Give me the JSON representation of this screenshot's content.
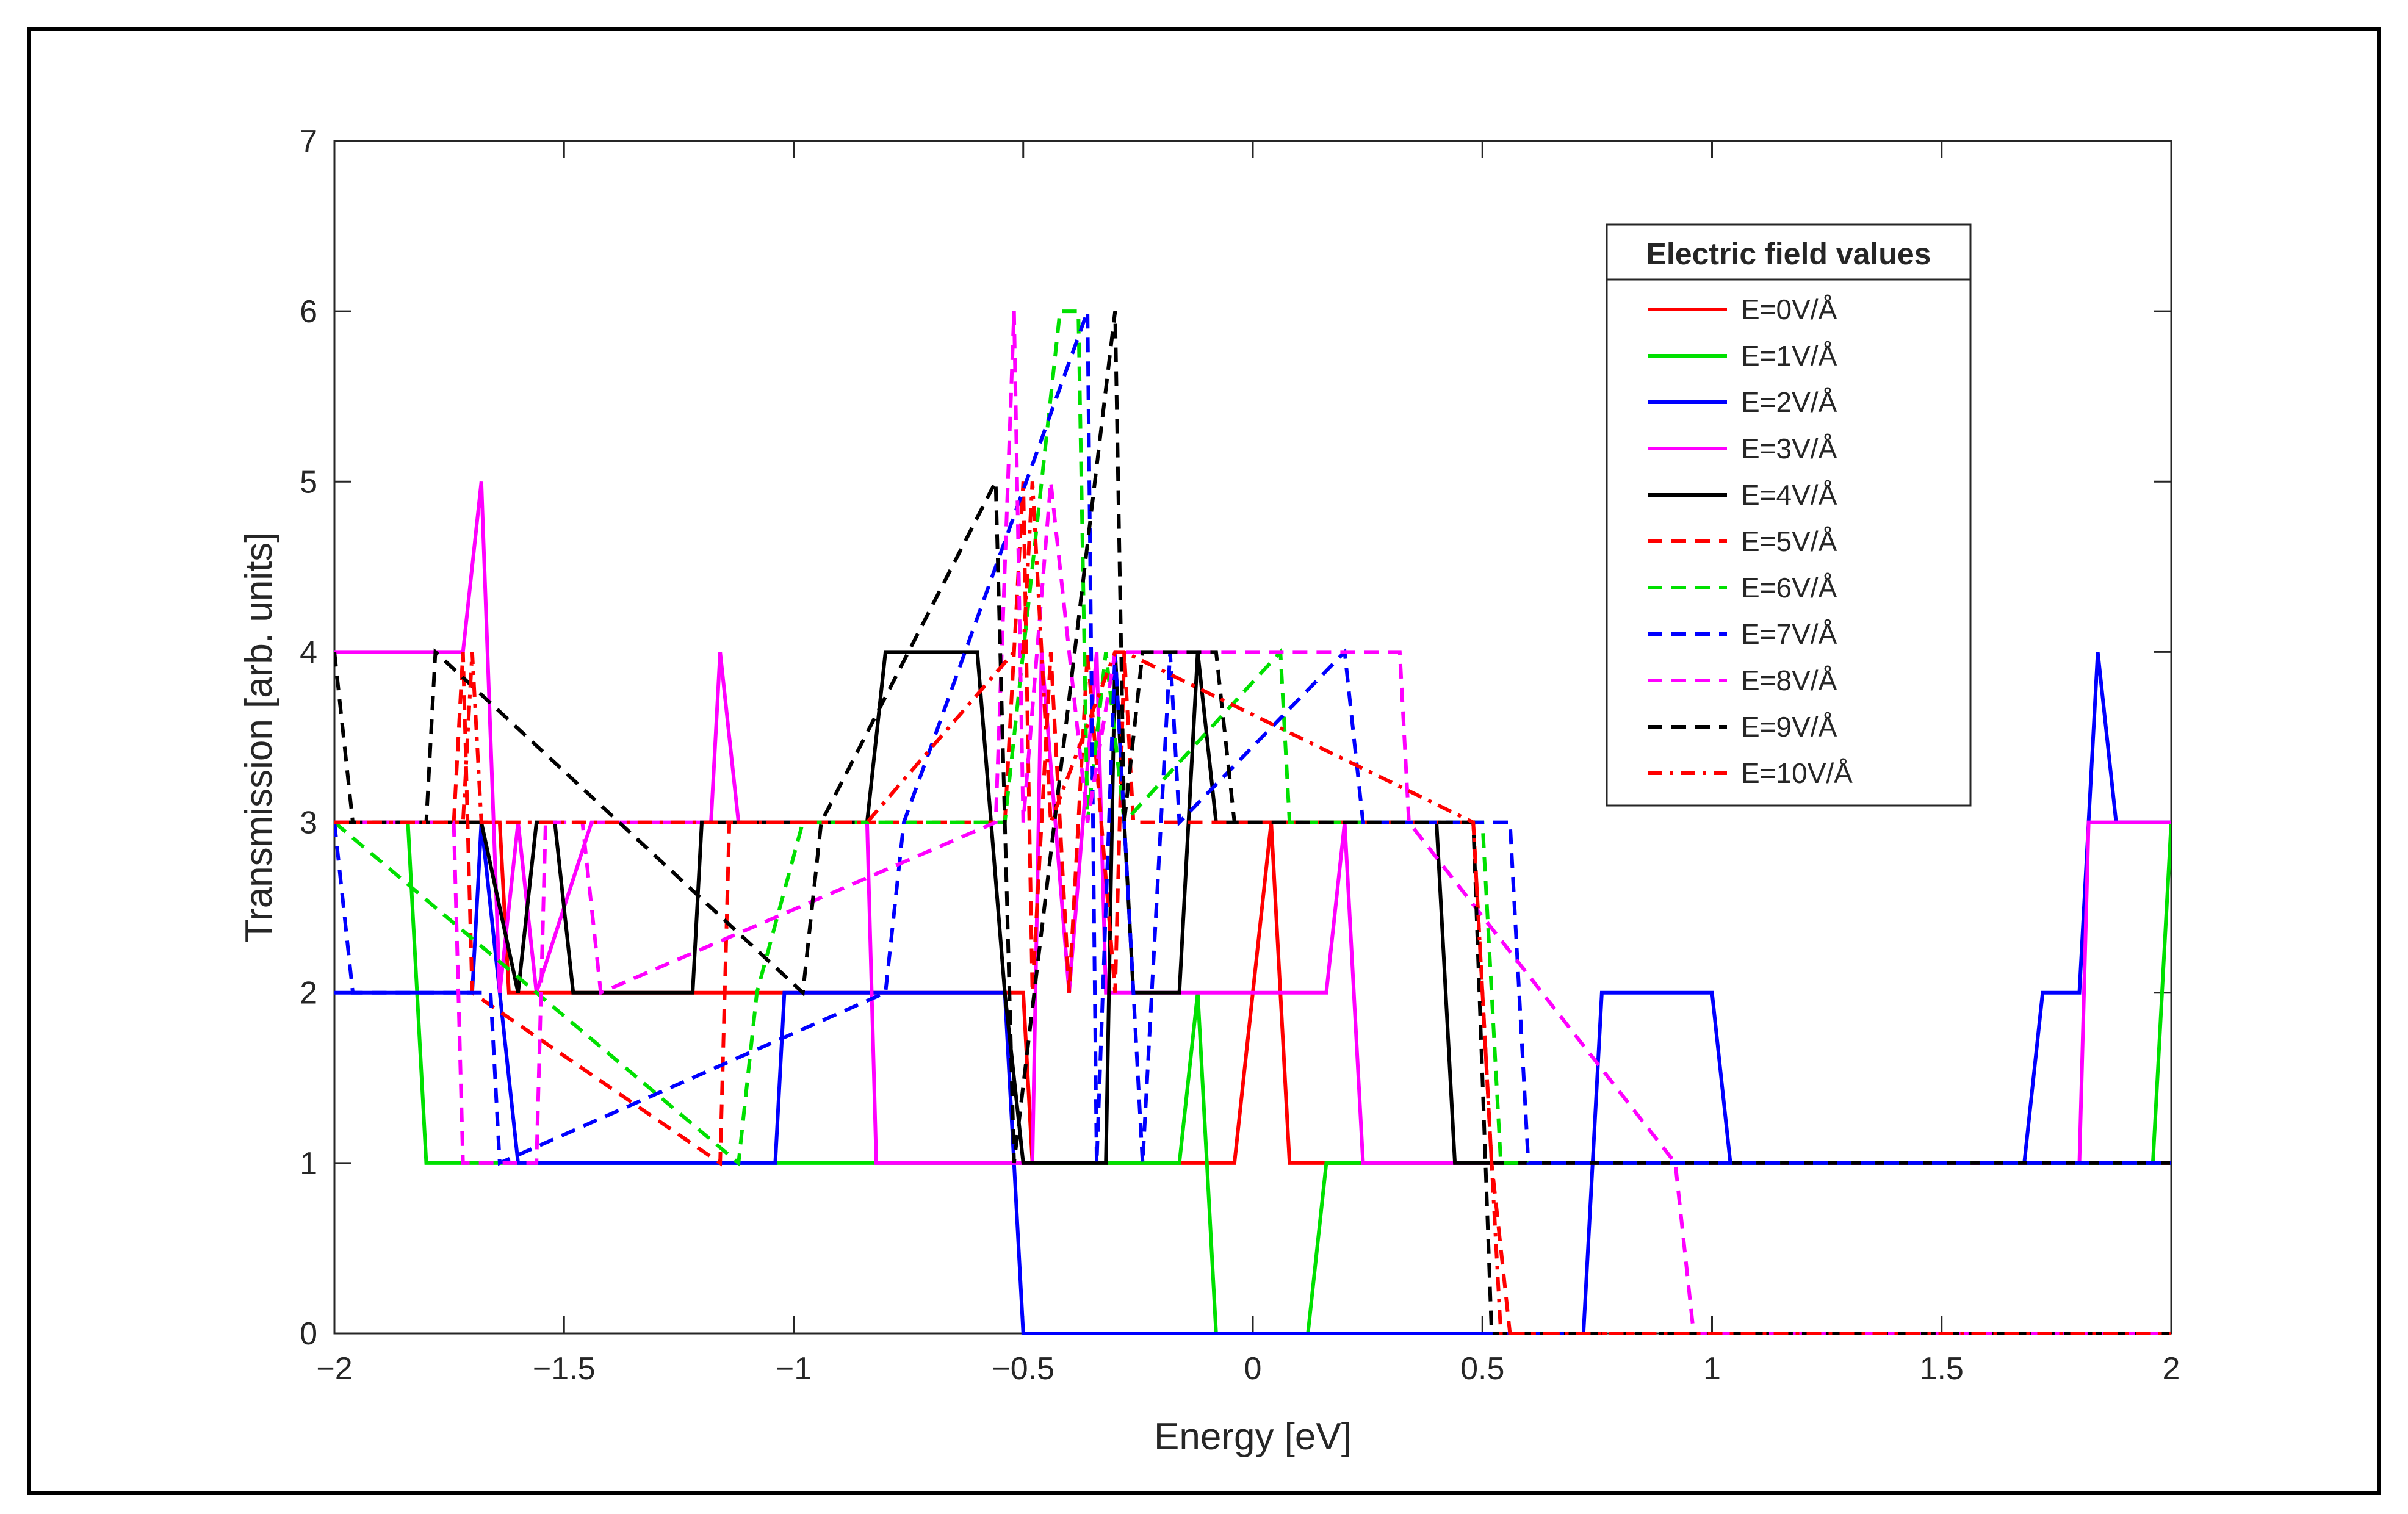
{
  "chart_data": {
    "type": "line",
    "xlabel": "Energy [eV]",
    "ylabel": "Transmission [arb. units]",
    "xlim": [
      -2,
      2
    ],
    "ylim": [
      0,
      7
    ],
    "xticks": [
      -2,
      -1.5,
      -1,
      -0.5,
      0,
      0.5,
      1,
      1.5,
      2
    ],
    "xtick_labels": [
      "−2",
      "−1.5",
      "−1",
      "−0.5",
      "0",
      "0.5",
      "1",
      "1.5",
      "2"
    ],
    "yticks": [
      0,
      1,
      2,
      3,
      4,
      5,
      6,
      7
    ],
    "ytick_labels": [
      "0",
      "1",
      "2",
      "3",
      "4",
      "5",
      "6",
      "7"
    ],
    "grid": false,
    "legend_title": "Electric field values",
    "legend_position": "top-right",
    "series": [
      {
        "name": "E=0V/Å",
        "color": "#ff0000",
        "style": "solid",
        "x": [
          -2,
          -1.64,
          -1.62,
          -0.5,
          -0.48,
          -0.04,
          0.04,
          0.08,
          0.1,
          2
        ],
        "y": [
          3,
          3,
          2,
          2,
          1,
          1,
          3,
          1,
          1,
          1
        ]
      },
      {
        "name": "E=1V/Å",
        "color": "#00e000",
        "style": "solid",
        "x": [
          -2,
          -1.84,
          -1.8,
          -1.06,
          -1.04,
          -0.16,
          -0.12,
          -0.08,
          0.12,
          0.16,
          1.96,
          2
        ],
        "y": [
          3,
          3,
          1,
          1,
          1,
          1,
          2,
          0,
          0,
          1,
          1,
          3
        ]
      },
      {
        "name": "E=2V/Å",
        "color": "#0000ff",
        "style": "solid",
        "x": [
          -2,
          -1.7,
          -1.68,
          -1.64,
          -1.6,
          -1.04,
          -1.02,
          -0.54,
          -0.52,
          -0.5,
          0.72,
          0.76,
          1,
          1.04,
          1.68,
          1.72,
          1.8,
          1.84,
          1.88,
          2
        ],
        "y": [
          2,
          2,
          3,
          2,
          1,
          1,
          2,
          2,
          1,
          0,
          0,
          2,
          2,
          1,
          1,
          2,
          2,
          4,
          3,
          3
        ]
      },
      {
        "name": "E=3V/Å",
        "color": "#ff00ff",
        "style": "solid",
        "x": [
          -2,
          -1.72,
          -1.68,
          -1.64,
          -1.6,
          -1.56,
          -1.44,
          -1.18,
          -1.16,
          -1.12,
          -0.84,
          -0.82,
          -0.48,
          -0.46,
          -0.4,
          -0.34,
          -0.32,
          -0.3,
          0.16,
          0.2,
          0.24,
          1.8,
          1.82,
          2
        ],
        "y": [
          4,
          4,
          5,
          2,
          3,
          2,
          3,
          3,
          4,
          3,
          3,
          1,
          1,
          4,
          2,
          4,
          2,
          2,
          2,
          3,
          1,
          1,
          3,
          3
        ]
      },
      {
        "name": "E=4V/Å",
        "color": "#000000",
        "style": "solid",
        "x": [
          -2,
          -1.68,
          -1.6,
          -1.56,
          -1.52,
          -1.48,
          -1.22,
          -1.2,
          -0.84,
          -0.8,
          -0.6,
          -0.54,
          -0.5,
          -0.32,
          -0.3,
          -0.26,
          -0.16,
          -0.14,
          -0.12,
          -0.08,
          0.4,
          0.44,
          2
        ],
        "y": [
          3,
          3,
          2,
          3,
          3,
          2,
          2,
          3,
          3,
          4,
          4,
          2,
          1,
          1,
          4,
          2,
          2,
          3,
          4,
          3,
          3,
          1,
          1
        ]
      },
      {
        "name": "E=5V/Å",
        "color": "#ff0000",
        "style": "dashed",
        "x": [
          -2,
          -1.74,
          -1.72,
          -1.7,
          -1.16,
          -1.14,
          -0.54,
          -0.5,
          -0.48,
          -0.44,
          -0.4,
          -0.36,
          -0.3,
          -0.28,
          -0.26,
          0.48,
          0.5,
          0.52,
          0.56,
          2
        ],
        "y": [
          3,
          3,
          4,
          2,
          1,
          3,
          3,
          5,
          2,
          4,
          2,
          4,
          2,
          4,
          3,
          3,
          2,
          1,
          0,
          0
        ]
      },
      {
        "name": "E=6V/Å",
        "color": "#00e000",
        "style": "dashed",
        "x": [
          -2,
          -1.12,
          -1.08,
          -0.98,
          -0.54,
          -0.5,
          -0.42,
          -0.38,
          -0.36,
          -0.32,
          -0.28,
          0.06,
          0.08,
          0.5,
          0.54,
          2
        ],
        "y": [
          3,
          1,
          2,
          3,
          3,
          4,
          6,
          6,
          3,
          4,
          3,
          4,
          3,
          3,
          1,
          1
        ]
      },
      {
        "name": "E=7V/Å",
        "color": "#0000ff",
        "style": "dashed",
        "x": [
          -2,
          -1.96,
          -1.66,
          -1.64,
          -0.8,
          -0.76,
          -0.36,
          -0.34,
          -0.3,
          -0.24,
          -0.18,
          -0.16,
          0.2,
          0.24,
          0.56,
          0.6,
          2
        ],
        "y": [
          3,
          2,
          2,
          1,
          2,
          3,
          6,
          1,
          4,
          1,
          4,
          3,
          4,
          3,
          3,
          1,
          1
        ]
      },
      {
        "name": "E=8V/Å",
        "color": "#ff00ff",
        "style": "dashed",
        "x": [
          -2,
          -1.74,
          -1.72,
          -1.56,
          -1.54,
          -1.46,
          -1.42,
          -0.56,
          -0.52,
          -0.5,
          -0.44,
          -0.4,
          -0.36,
          -0.3,
          0.32,
          0.34,
          0.92,
          0.96,
          2
        ],
        "y": [
          3,
          3,
          1,
          1,
          3,
          3,
          2,
          3,
          6,
          3,
          5,
          4,
          3,
          4,
          4,
          3,
          1,
          0,
          0
        ]
      },
      {
        "name": "E=9V/Å",
        "color": "#000000",
        "style": "dashed",
        "x": [
          -2,
          -1.96,
          -1.8,
          -1.78,
          -0.98,
          -0.94,
          -0.56,
          -0.52,
          -0.3,
          -0.28,
          -0.24,
          -0.08,
          -0.04,
          0.48,
          0.52,
          2
        ],
        "y": [
          4,
          3,
          3,
          4,
          2,
          3,
          5,
          1,
          6,
          3,
          4,
          4,
          3,
          3,
          0,
          0
        ]
      },
      {
        "name": "E=10V/Å",
        "color": "#ff0000",
        "style": "dashdot",
        "x": [
          -2,
          -1.72,
          -1.7,
          -1.68,
          -0.86,
          -0.84,
          -0.52,
          -0.5,
          -0.48,
          -0.44,
          -0.3,
          -0.28,
          0.48,
          0.54,
          2
        ],
        "y": [
          3,
          3,
          4,
          3,
          3,
          3,
          4,
          4,
          5,
          3,
          4,
          4,
          3,
          0,
          0
        ]
      }
    ]
  }
}
